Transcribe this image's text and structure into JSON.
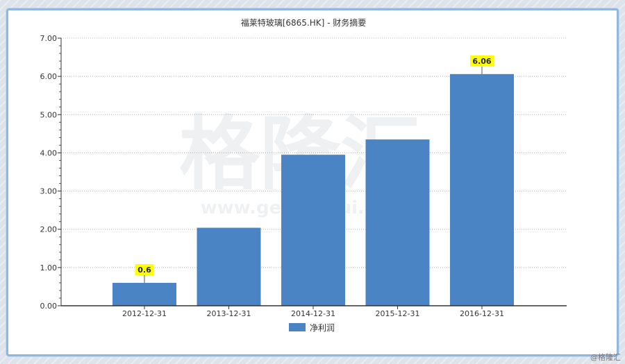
{
  "chart_data": {
    "type": "bar",
    "title": "福莱特玻璃[6865.HK] - 财务摘要",
    "categories": [
      "2012-12-31",
      "2013-12-31",
      "2014-12-31",
      "2015-12-31",
      "2016-12-31"
    ],
    "series": [
      {
        "name": "净利润",
        "values": [
          0.6,
          2.04,
          3.95,
          4.35,
          6.06
        ],
        "color": "#4a84c4"
      }
    ],
    "data_labels": [
      "0.6",
      "",
      "",
      "",
      "6.06"
    ],
    "yticks": [
      "0.00",
      "1.00",
      "2.00",
      "3.00",
      "4.00",
      "5.00",
      "6.00",
      "7.00"
    ],
    "ylim": [
      0,
      7
    ],
    "grid": "horizontal-dotted",
    "legend_position": "bottom-center",
    "label_highlight_color": "#ffff00"
  },
  "watermark": {
    "cn": "格隆汇",
    "url": "www.gelonghui.com"
  },
  "credit": "@格隆汇"
}
